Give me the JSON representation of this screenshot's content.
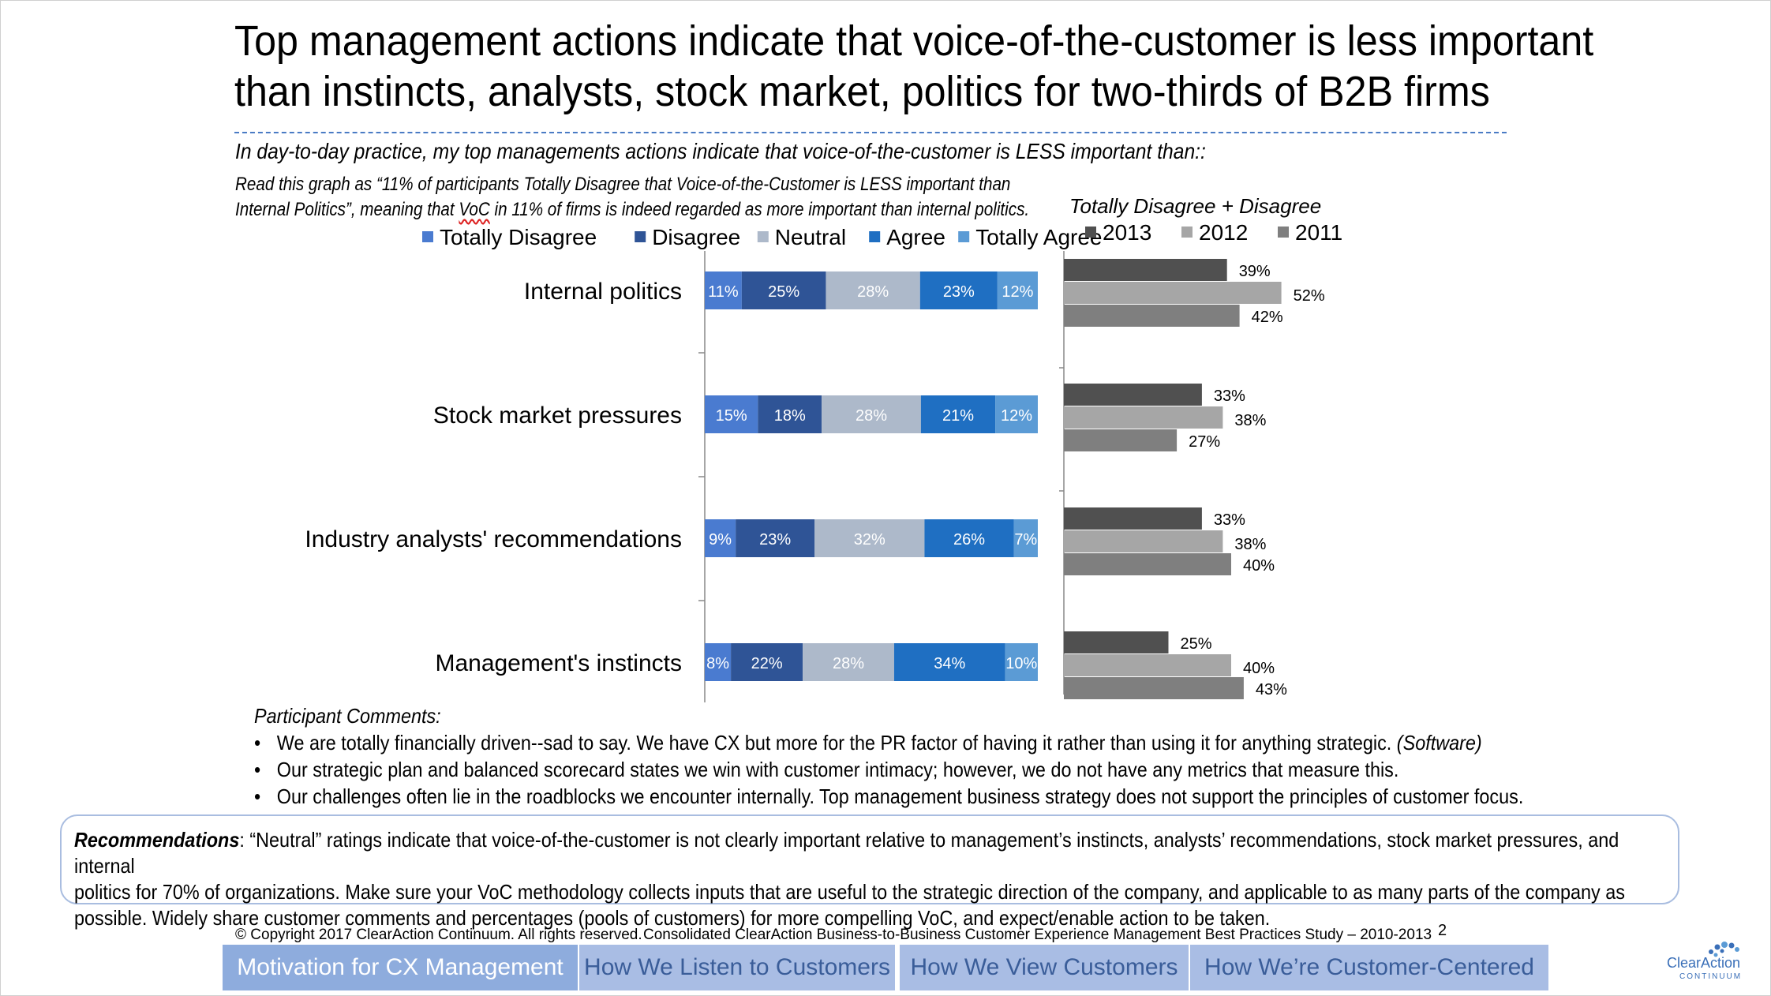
{
  "title_lines": [
    "Top management actions indicate that voice-of-the-customer is less important",
    "than instincts, analysts, stock market, politics for two-thirds of B2B firms"
  ],
  "subtitle": "In day-to-day practice, my top managements actions indicate that voice-of-the-customer is LESS important than::",
  "note": {
    "line1": "Read this graph as “11% of participants Totally Disagree that Voice-of-the-Customer is LESS important than",
    "line2_pre": "Internal Politics”, meaning that ",
    "line2_voc": "VoC",
    "line2_post": " in 11% of firms is indeed regarded as more important than internal politics."
  },
  "chart_data": [
    {
      "type": "bar",
      "orientation": "horizontal",
      "stacked": true,
      "categories": [
        "Internal politics",
        "Stock market pressures",
        "Industry analysts' recommendations",
        "Management's instincts"
      ],
      "series": [
        {
          "name": "Totally Disagree",
          "color": "#4a7bd0",
          "values": [
            11,
            15,
            9,
            8
          ],
          "labels": [
            "11%",
            "15%",
            "9%",
            "8%"
          ]
        },
        {
          "name": "Disagree",
          "color": "#2f5496",
          "values": [
            25,
            18,
            23,
            22
          ],
          "labels": [
            "25%",
            "18%",
            "23%",
            "22%"
          ]
        },
        {
          "name": "Neutral",
          "color": "#adb9ca",
          "values": [
            28,
            28,
            32,
            28
          ],
          "labels": [
            "28%",
            "28%",
            "32%",
            "28%"
          ]
        },
        {
          "name": "Agree",
          "color": "#1f6fc2",
          "values": [
            23,
            21,
            26,
            34
          ],
          "labels": [
            "23%",
            "21%",
            "26%",
            "34%"
          ]
        },
        {
          "name": "Totally Agree",
          "color": "#5b9bd5",
          "values": [
            12,
            12,
            7,
            10
          ],
          "labels": [
            "12%",
            "12%",
            "7%",
            "10%"
          ]
        }
      ],
      "legend_position": "top"
    },
    {
      "type": "bar",
      "orientation": "horizontal",
      "title": "Totally Disagree + Disagree",
      "categories": [
        "Internal politics",
        "Stock market pressures",
        "Industry analysts' recommendations",
        "Management's instincts"
      ],
      "series": [
        {
          "name": "2013",
          "color": "#505050",
          "values": [
            39,
            33,
            33,
            25
          ],
          "labels": [
            "39%",
            "33%",
            "33%",
            "25%"
          ]
        },
        {
          "name": "2012",
          "color": "#a6a6a6",
          "values": [
            52,
            38,
            38,
            40
          ],
          "labels": [
            "52%",
            "38%",
            "38%",
            "40%"
          ]
        },
        {
          "name": "2011",
          "color": "#7f7f7f",
          "values": [
            42,
            27,
            40,
            43
          ],
          "labels": [
            "42%",
            "27%",
            "40%",
            "43%"
          ]
        }
      ],
      "legend_position": "top"
    }
  ],
  "comments": {
    "header": "Participant Comments:",
    "items": [
      {
        "text": "We are totally financially driven--sad to say.  We have CX but more for the PR factor of having it rather than using it for anything strategic. ",
        "tag": "(Software)"
      },
      {
        "text": "Our strategic plan and balanced scorecard states we win with customer intimacy; however, we do not have any metrics that measure this.",
        "tag": ""
      },
      {
        "text": "Our challenges often lie in the roadblocks we encounter internally. Top management business strategy does not support the principles of customer focus.",
        "tag": ""
      }
    ]
  },
  "recommendations": {
    "label": "Recommendations",
    "line1": ":  “Neutral” ratings indicate that voice-of-the-customer is not clearly important relative to management’s instincts, analysts’ recommendations, stock market pressures, and internal",
    "line2": "politics for 70% of organizations.  Make sure your VoC methodology collects inputs that are useful to the strategic direction of the company, and applicable to as many parts of the company as",
    "line3": "possible. Widely share customer comments and percentages (pools of customers) for more compelling VoC, and expect/enable action to be taken."
  },
  "footer": {
    "copyright": "© Copyright 2017 ClearAction Continuum. All rights reserved.",
    "study": "Consolidated ClearAction Business-to-Business Customer Experience Management Best Practices Study – 2010-2013",
    "page": "2"
  },
  "tabs": [
    {
      "label": "Motivation for CX Management",
      "active": true
    },
    {
      "label": "How We Listen to Customers",
      "active": false
    },
    {
      "label": "How We View Customers",
      "active": false
    },
    {
      "label": "How We’re Customer-Centered",
      "active": false
    }
  ],
  "logo": {
    "name": "ClearAction",
    "sub": "CONTINUUM",
    "icon": "dots-arc-icon"
  }
}
